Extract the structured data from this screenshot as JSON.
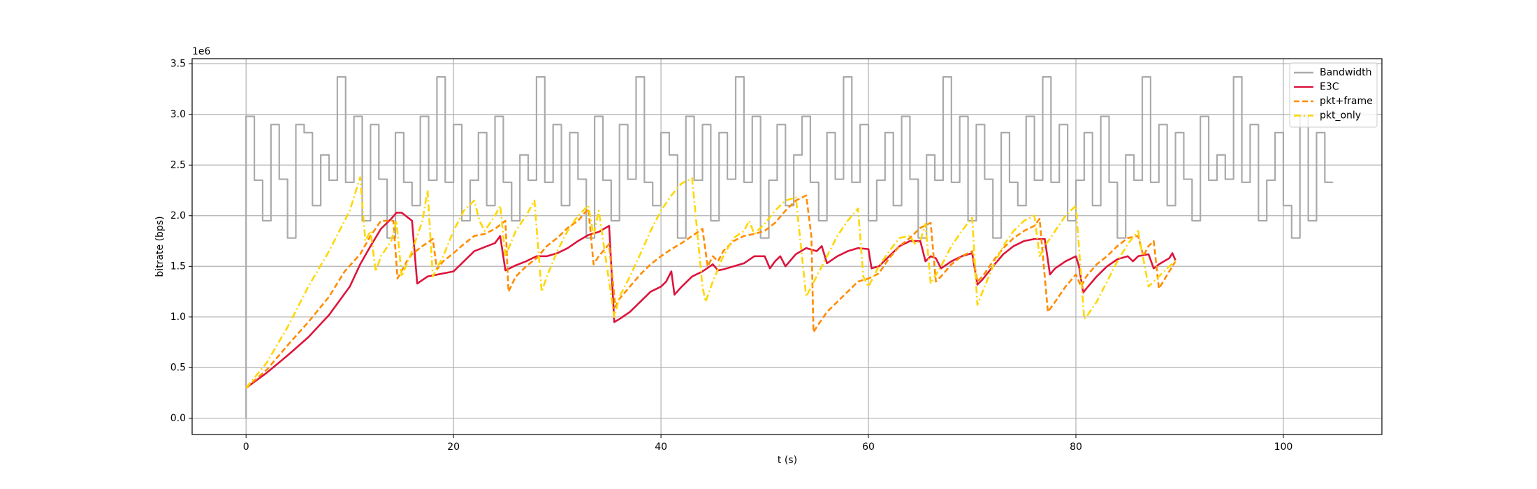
{
  "chart_data": {
    "type": "line",
    "y_offset_label": "1e6",
    "xlabel": "t (s)",
    "ylabel": "bitrate (bps)",
    "xlim": [
      -5.2,
      109.5
    ],
    "ylim": [
      -0.16,
      3.55
    ],
    "xticks": [
      0,
      20,
      40,
      60,
      80,
      100
    ],
    "yticks": [
      {
        "value": 0,
        "label": "0.0"
      },
      0.5,
      {
        "value": 1,
        "label": "1.0"
      },
      1.5,
      {
        "value": 2,
        "label": "2.0"
      },
      2.5,
      {
        "value": 3,
        "label": "3.0"
      },
      3.5
    ],
    "grid": true,
    "legend": "upper right",
    "series": [
      {
        "name": "Bandwidth",
        "color": "#aaaaaa",
        "linestyle": "solid",
        "drawstyle": "steps",
        "x": [
          0,
          0.8,
          1.6,
          2.4,
          3.2,
          4,
          4.8,
          5.6,
          6.4,
          7.2,
          8,
          8.8,
          9.6,
          10.4,
          11.2,
          12,
          12.8,
          13.6,
          14.4,
          15.2,
          16,
          16.8,
          17.6,
          18.4,
          19.2,
          20,
          20.8,
          21.6,
          22.4,
          23.2,
          24,
          24.8,
          25.6,
          26.4,
          27.2,
          28,
          28.8,
          29.6,
          30.4,
          31.2,
          32,
          32.8,
          33.6,
          34.4,
          35.2,
          36,
          36.8,
          37.6,
          38.4,
          39.2,
          40,
          40.8,
          41.6,
          42.4,
          43.2,
          44,
          44.8,
          45.6,
          46.4,
          47.2,
          48,
          48.8,
          49.6,
          50.4,
          51.2,
          52,
          52.8,
          53.6,
          54.4,
          55.2,
          56,
          56.8,
          57.6,
          58.4,
          59.2,
          60,
          60.8,
          61.6,
          62.4,
          63.2,
          64,
          64.8,
          65.6,
          66.4,
          67.2,
          68,
          68.8,
          69.6,
          70.4,
          71.2,
          72,
          72.8,
          73.6,
          74.4,
          75.2,
          76,
          76.8,
          77.6,
          78.4,
          79.2,
          80,
          80.8,
          81.6,
          82.4,
          83.2,
          84,
          84.8,
          85.6,
          86.4,
          87.2,
          88,
          88.8,
          89.6,
          90.4,
          91.2,
          92,
          92.8,
          93.6,
          94.4,
          95.2,
          96,
          96.8,
          97.6,
          98.4,
          99.2,
          100,
          100.8,
          101.6,
          102.4,
          103.2,
          104,
          104.8
        ],
        "values": [
          0,
          2.98,
          2.35,
          1.95,
          2.9,
          2.36,
          1.78,
          2.9,
          2.82,
          2.1,
          2.6,
          2.35,
          3.37,
          2.33,
          2.98,
          1.95,
          2.9,
          2.36,
          1.78,
          2.82,
          2.33,
          2.1,
          2.98,
          2.35,
          3.37,
          2.33,
          2.9,
          1.95,
          2.35,
          2.82,
          2.1,
          2.98,
          2.33,
          1.95,
          2.6,
          2.35,
          3.37,
          2.33,
          2.9,
          2.1,
          2.82,
          2.36,
          1.78,
          2.98,
          2.35,
          1.95,
          2.9,
          2.36,
          3.37,
          2.33,
          2.1,
          2.82,
          2.6,
          1.78,
          2.98,
          2.35,
          2.9,
          1.95,
          2.82,
          2.36,
          3.37,
          2.33,
          2.98,
          1.78,
          2.35,
          2.9,
          2.1,
          2.6,
          2.98,
          2.33,
          1.95,
          2.82,
          2.36,
          3.37,
          2.33,
          2.9,
          1.95,
          2.35,
          2.82,
          2.1,
          2.98,
          2.36,
          1.78,
          2.6,
          2.35,
          3.37,
          2.33,
          2.98,
          1.95,
          2.9,
          2.36,
          1.78,
          2.82,
          2.33,
          2.1,
          2.98,
          2.35,
          3.37,
          2.33,
          2.9,
          1.95,
          2.35,
          2.82,
          2.1,
          2.98,
          2.33,
          1.78,
          2.6,
          2.35,
          3.37,
          2.33,
          2.9,
          2.1,
          2.82,
          2.36,
          1.95,
          2.98,
          2.35,
          2.6,
          2.36,
          3.37,
          2.33,
          2.9,
          1.95,
          2.35,
          2.82,
          2.1,
          1.78,
          2.98,
          1.95,
          2.82,
          2.33
        ],
        "axis_note": null
      },
      {
        "name": "E3C",
        "color": "#dc143c",
        "linestyle": "solid",
        "x": [
          0,
          2,
          4,
          6,
          8,
          10,
          11,
          12,
          13,
          14,
          14.5,
          15,
          16,
          16.5,
          17.5,
          19,
          20,
          21,
          22,
          23,
          24,
          24.5,
          25,
          26,
          27,
          28,
          29,
          30,
          31,
          32,
          33,
          34,
          35,
          35.5,
          36,
          37,
          38,
          39,
          40,
          40.5,
          41,
          41.3,
          42,
          43,
          44,
          45,
          45.5,
          46,
          47,
          48,
          49,
          50,
          50.5,
          51,
          51.5,
          52,
          53,
          54,
          55,
          55.5,
          56,
          57,
          58,
          59,
          60,
          60.3,
          61,
          62,
          63,
          64,
          65,
          65.5,
          66,
          66.5,
          67,
          68,
          69,
          70,
          70.5,
          71,
          72,
          73,
          74,
          75,
          76,
          77,
          77.5,
          78,
          79,
          80,
          80.3,
          80.7,
          81,
          82,
          83,
          84,
          85,
          85.5,
          86,
          87,
          87.5,
          88,
          89,
          89.3,
          89.6
        ],
        "values": [
          0.3,
          0.45,
          0.62,
          0.8,
          1.02,
          1.3,
          1.52,
          1.7,
          1.87,
          1.97,
          2.03,
          2.03,
          1.95,
          1.33,
          1.4,
          1.43,
          1.45,
          1.55,
          1.65,
          1.69,
          1.73,
          1.8,
          1.46,
          1.51,
          1.55,
          1.6,
          1.6,
          1.63,
          1.68,
          1.75,
          1.81,
          1.84,
          1.9,
          0.95,
          0.98,
          1.05,
          1.15,
          1.25,
          1.3,
          1.35,
          1.45,
          1.22,
          1.3,
          1.4,
          1.45,
          1.52,
          1.46,
          1.47,
          1.5,
          1.53,
          1.6,
          1.6,
          1.48,
          1.55,
          1.6,
          1.5,
          1.62,
          1.68,
          1.65,
          1.7,
          1.53,
          1.6,
          1.65,
          1.68,
          1.67,
          1.48,
          1.5,
          1.6,
          1.7,
          1.75,
          1.75,
          1.55,
          1.6,
          1.58,
          1.48,
          1.55,
          1.6,
          1.63,
          1.32,
          1.37,
          1.5,
          1.62,
          1.7,
          1.75,
          1.77,
          1.77,
          1.42,
          1.48,
          1.55,
          1.6,
          1.5,
          1.24,
          1.28,
          1.4,
          1.5,
          1.57,
          1.6,
          1.55,
          1.6,
          1.62,
          1.48,
          1.52,
          1.58,
          1.63,
          1.56
        ]
      },
      {
        "name": "pkt+frame",
        "color": "#ff8c00",
        "linestyle": "dashed",
        "x": [
          0,
          2,
          4,
          6,
          8,
          9.5,
          11,
          12,
          13,
          14.2,
          14.6,
          15.5,
          16,
          17,
          18,
          18.4,
          19,
          20,
          21,
          22,
          23,
          24,
          25,
          25.3,
          26,
          27,
          28,
          29,
          30,
          31,
          32,
          33,
          33.5,
          34,
          35,
          35.6,
          36,
          37,
          38,
          39,
          40,
          41,
          42,
          43,
          44,
          44.5,
          45,
          45.5,
          46,
          47,
          48,
          49,
          50,
          51,
          52,
          53,
          54,
          54.5,
          54.7,
          55,
          56,
          57,
          58,
          59,
          60,
          61,
          62,
          63,
          64,
          65,
          66,
          66.5,
          67,
          68,
          69,
          70,
          70.5,
          71,
          72,
          73,
          74,
          75,
          76,
          76.5,
          77.3,
          78,
          79,
          80,
          80.5,
          81,
          82,
          83,
          84,
          85,
          86,
          86.5,
          87,
          87.5,
          88,
          89,
          89.6
        ],
        "values": [
          0.3,
          0.48,
          0.72,
          0.95,
          1.2,
          1.45,
          1.62,
          1.8,
          1.95,
          1.95,
          1.38,
          1.55,
          1.62,
          1.7,
          1.77,
          1.47,
          1.55,
          1.63,
          1.72,
          1.8,
          1.82,
          1.87,
          1.95,
          1.25,
          1.4,
          1.5,
          1.58,
          1.7,
          1.78,
          1.88,
          1.95,
          2.07,
          1.52,
          1.6,
          1.72,
          1.1,
          1.18,
          1.3,
          1.42,
          1.52,
          1.6,
          1.67,
          1.73,
          1.8,
          1.87,
          1.5,
          1.6,
          1.55,
          1.65,
          1.75,
          1.8,
          1.82,
          1.85,
          1.93,
          2.05,
          2.15,
          2.2,
          1.8,
          0.85,
          0.9,
          1.05,
          1.15,
          1.25,
          1.35,
          1.38,
          1.43,
          1.58,
          1.7,
          1.78,
          1.88,
          1.93,
          1.35,
          1.4,
          1.52,
          1.6,
          1.65,
          1.35,
          1.4,
          1.55,
          1.68,
          1.78,
          1.85,
          1.9,
          1.97,
          1.05,
          1.15,
          1.3,
          1.42,
          1.3,
          1.4,
          1.52,
          1.6,
          1.7,
          1.78,
          1.8,
          1.6,
          1.7,
          1.75,
          1.28,
          1.45,
          1.55
        ]
      },
      {
        "name": "pkt_only",
        "color": "#ffd700",
        "linestyle": "dashdot",
        "x": [
          0,
          2,
          4,
          6,
          8,
          9,
          10,
          11,
          11.5,
          12,
          12.5,
          13,
          14,
          14.5,
          15,
          16,
          17,
          17.5,
          18,
          19,
          20,
          21,
          22,
          22.5,
          23,
          24,
          24.5,
          25,
          26,
          27,
          27.8,
          28.5,
          29,
          30,
          31,
          32,
          33,
          33.5,
          34,
          35.5,
          36,
          37,
          38,
          39,
          40,
          41,
          42,
          43,
          44,
          44.3,
          45,
          46,
          47,
          48,
          48.5,
          49,
          50,
          51,
          52,
          53,
          54,
          55,
          56,
          57,
          58,
          59,
          59.5,
          60,
          61,
          62,
          63,
          64,
          64.5,
          65,
          65.5,
          66,
          67,
          68,
          69,
          70,
          70.5,
          71,
          72,
          73,
          74,
          75,
          76,
          76.5,
          77,
          78,
          79,
          80,
          80.8,
          81,
          82,
          83,
          84,
          85,
          86,
          87,
          88,
          89,
          89.6
        ],
        "values": [
          0.3,
          0.55,
          0.9,
          1.3,
          1.65,
          1.85,
          2.05,
          2.38,
          1.75,
          1.85,
          1.45,
          1.6,
          1.75,
          1.95,
          1.4,
          1.65,
          1.95,
          2.25,
          1.4,
          1.6,
          1.85,
          2.05,
          2.15,
          1.95,
          1.85,
          2.0,
          2.1,
          1.6,
          1.85,
          2.0,
          2.15,
          1.25,
          1.4,
          1.65,
          1.85,
          2.0,
          2.1,
          1.8,
          2.05,
          1.0,
          1.2,
          1.4,
          1.62,
          1.85,
          2.05,
          2.2,
          2.32,
          2.37,
          1.3,
          1.15,
          1.35,
          1.6,
          1.78,
          1.85,
          1.95,
          1.82,
          1.92,
          2.05,
          2.15,
          2.18,
          1.2,
          1.4,
          1.6,
          1.8,
          1.95,
          2.07,
          1.4,
          1.3,
          1.5,
          1.65,
          1.78,
          1.8,
          1.72,
          1.75,
          1.92,
          1.33,
          1.5,
          1.7,
          1.85,
          1.98,
          1.12,
          1.25,
          1.5,
          1.7,
          1.85,
          1.95,
          2.0,
          1.6,
          1.7,
          1.85,
          2.0,
          2.1,
          0.98,
          1.0,
          1.15,
          1.35,
          1.55,
          1.72,
          1.85,
          1.3,
          1.4,
          1.5,
          1.55
        ]
      }
    ]
  }
}
